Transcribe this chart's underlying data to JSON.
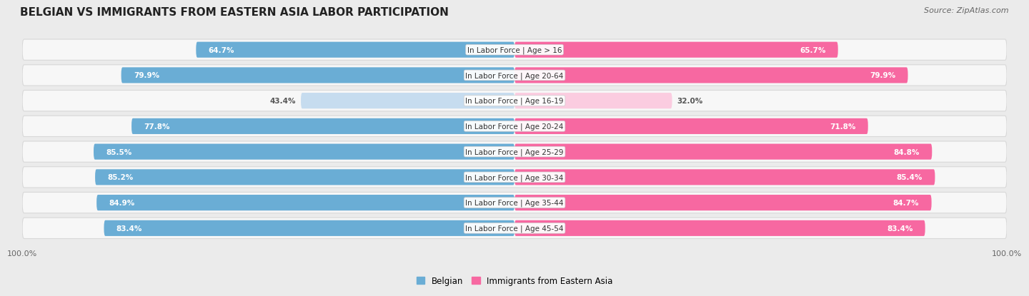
{
  "title": "BELGIAN VS IMMIGRANTS FROM EASTERN ASIA LABOR PARTICIPATION",
  "source": "Source: ZipAtlas.com",
  "categories": [
    "In Labor Force | Age > 16",
    "In Labor Force | Age 20-64",
    "In Labor Force | Age 16-19",
    "In Labor Force | Age 20-24",
    "In Labor Force | Age 25-29",
    "In Labor Force | Age 30-34",
    "In Labor Force | Age 35-44",
    "In Labor Force | Age 45-54"
  ],
  "belgian_values": [
    64.7,
    79.9,
    43.4,
    77.8,
    85.5,
    85.2,
    84.9,
    83.4
  ],
  "immigrant_values": [
    65.7,
    79.9,
    32.0,
    71.8,
    84.8,
    85.4,
    84.7,
    83.4
  ],
  "belgian_color": "#6aadd5",
  "immigrant_color": "#f768a1",
  "belgian_color_light": "#c6dcef",
  "immigrant_color_light": "#fbcce0",
  "bg_color": "#ebebeb",
  "row_bg_color": "#f7f7f7",
  "row_border_color": "#d8d8d8",
  "max_value": 100.0,
  "legend_belgian": "Belgian",
  "legend_immigrant": "Immigrants from Eastern Asia",
  "title_fontsize": 11,
  "source_fontsize": 8,
  "cat_label_fontsize": 7.5,
  "bar_label_fontsize": 7.5
}
